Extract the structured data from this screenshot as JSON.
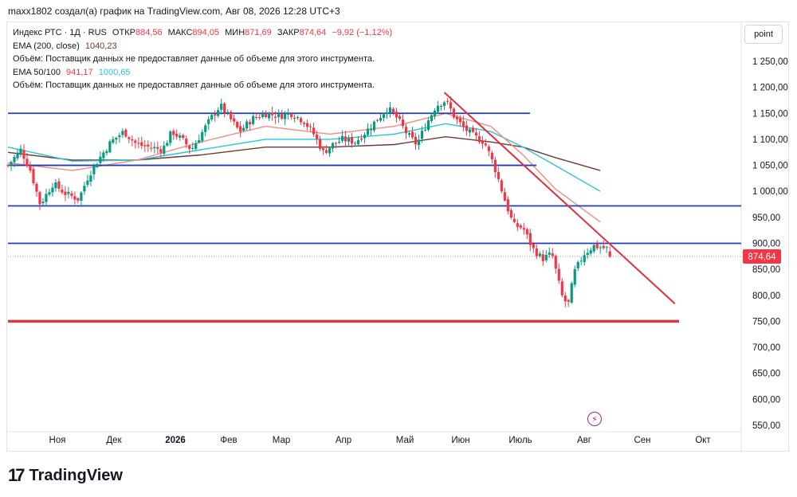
{
  "header": "maxx1802 создал(а) график на TradingView.com, Авг 08, 2026 12:28 UTC+3",
  "legend": {
    "symbol": "Индекс РТС · 1Д · RUS",
    "open_label": "ОТКР",
    "open": "884,56",
    "high_label": "МАКС",
    "high": "894,05",
    "low_label": "МИН",
    "low": "871,69",
    "close_label": "ЗАКР",
    "close": "874,64",
    "change": "−9,92 (−1,12%)",
    "ema200_label": "EMA (200, close)",
    "ema200_value": "1040,23",
    "volume_note_1": "Объём: Поставщик данных не предоставляет данные об объеме для этого инструмента.",
    "ema_label": "EMA 50/100",
    "ema50_value": "941,17",
    "ema100_value": "1000,65",
    "volume_note_2": "Объём: Поставщик данных не предоставляет данные об объеме для этого инструмента."
  },
  "scale_button": "point",
  "price_badge": "874,64",
  "footer_brand": "TradingView",
  "colors": {
    "up": "#089981",
    "down": "#f23645",
    "level_line": "#1e3fb4",
    "trend_line": "#e0303c",
    "support_line": "#d63a44",
    "ema200": "#6d3a2c",
    "ema100": "#26c6da",
    "ema50": "#f28b82"
  },
  "chart_data": {
    "type": "candlestick",
    "symbol": "Индекс РТС",
    "timeframe": "1Д",
    "y_ticks": [
      "1 250,00",
      "1 200,00",
      "1 150,00",
      "1 100,00",
      "1 050,00",
      "1 000,00",
      "950,00",
      "900,00",
      "850,00",
      "800,00",
      "750,00",
      "700,00",
      "650,00",
      "600,00",
      "550,00"
    ],
    "ylim": [
      530,
      1290
    ],
    "x_ticks": [
      "Ноя",
      "Дек",
      "2026",
      "Фев",
      "Мар",
      "Апр",
      "Май",
      "Июн",
      "Июль",
      "Авг",
      "Сен",
      "Окт"
    ],
    "last_price": 874.64,
    "ohlc": {
      "open": 884.56,
      "high": 894.05,
      "low": 871.69,
      "close": 874.64
    },
    "horizontal_levels": [
      1150,
      1050,
      972,
      900
    ],
    "support_level": 750,
    "trendline": {
      "start": [
        0.678,
        1190
      ],
      "end": [
        1.036,
        784
      ]
    },
    "price_path": [
      [
        0.0,
        1050
      ],
      [
        0.02,
        1080
      ],
      [
        0.035,
        1040
      ],
      [
        0.05,
        975
      ],
      [
        0.07,
        1015
      ],
      [
        0.09,
        995
      ],
      [
        0.11,
        985
      ],
      [
        0.125,
        1030
      ],
      [
        0.14,
        1060
      ],
      [
        0.16,
        1095
      ],
      [
        0.18,
        1115
      ],
      [
        0.2,
        1090
      ],
      [
        0.22,
        1085
      ],
      [
        0.24,
        1080
      ],
      [
        0.255,
        1115
      ],
      [
        0.27,
        1100
      ],
      [
        0.285,
        1080
      ],
      [
        0.3,
        1110
      ],
      [
        0.315,
        1140
      ],
      [
        0.33,
        1165
      ],
      [
        0.345,
        1140
      ],
      [
        0.36,
        1115
      ],
      [
        0.38,
        1140
      ],
      [
        0.4,
        1150
      ],
      [
        0.42,
        1145
      ],
      [
        0.44,
        1150
      ],
      [
        0.46,
        1135
      ],
      [
        0.475,
        1110
      ],
      [
        0.49,
        1075
      ],
      [
        0.505,
        1090
      ],
      [
        0.52,
        1100
      ],
      [
        0.54,
        1095
      ],
      [
        0.56,
        1120
      ],
      [
        0.575,
        1140
      ],
      [
        0.59,
        1160
      ],
      [
        0.605,
        1140
      ],
      [
        0.62,
        1110
      ],
      [
        0.635,
        1090
      ],
      [
        0.65,
        1130
      ],
      [
        0.665,
        1165
      ],
      [
        0.68,
        1175
      ],
      [
        0.695,
        1140
      ],
      [
        0.71,
        1120
      ],
      [
        0.725,
        1105
      ],
      [
        0.74,
        1095
      ],
      [
        0.755,
        1050
      ],
      [
        0.77,
        990
      ],
      [
        0.785,
        935
      ],
      [
        0.8,
        930
      ],
      [
        0.815,
        890
      ],
      [
        0.83,
        870
      ],
      [
        0.845,
        880
      ],
      [
        0.86,
        800
      ],
      [
        0.87,
        780
      ],
      [
        0.88,
        845
      ],
      [
        0.895,
        880
      ],
      [
        0.91,
        895
      ],
      [
        0.93,
        890
      ],
      [
        0.935,
        875
      ]
    ],
    "ema200": [
      [
        0.0,
        1075
      ],
      [
        0.1,
        1060
      ],
      [
        0.2,
        1060
      ],
      [
        0.3,
        1070
      ],
      [
        0.4,
        1085
      ],
      [
        0.5,
        1085
      ],
      [
        0.6,
        1090
      ],
      [
        0.68,
        1105
      ],
      [
        0.75,
        1095
      ],
      [
        0.8,
        1085
      ],
      [
        0.85,
        1065
      ],
      [
        0.92,
        1040
      ]
    ],
    "ema100": [
      [
        0.0,
        1085
      ],
      [
        0.1,
        1058
      ],
      [
        0.2,
        1060
      ],
      [
        0.3,
        1080
      ],
      [
        0.4,
        1100
      ],
      [
        0.5,
        1100
      ],
      [
        0.6,
        1110
      ],
      [
        0.68,
        1130
      ],
      [
        0.75,
        1115
      ],
      [
        0.8,
        1085
      ],
      [
        0.85,
        1050
      ],
      [
        0.92,
        1000
      ]
    ],
    "ema50": [
      [
        0.0,
        1055
      ],
      [
        0.1,
        1040
      ],
      [
        0.2,
        1060
      ],
      [
        0.3,
        1095
      ],
      [
        0.4,
        1125
      ],
      [
        0.5,
        1110
      ],
      [
        0.6,
        1125
      ],
      [
        0.68,
        1150
      ],
      [
        0.75,
        1125
      ],
      [
        0.8,
        1070
      ],
      [
        0.85,
        1005
      ],
      [
        0.92,
        941
      ]
    ]
  }
}
